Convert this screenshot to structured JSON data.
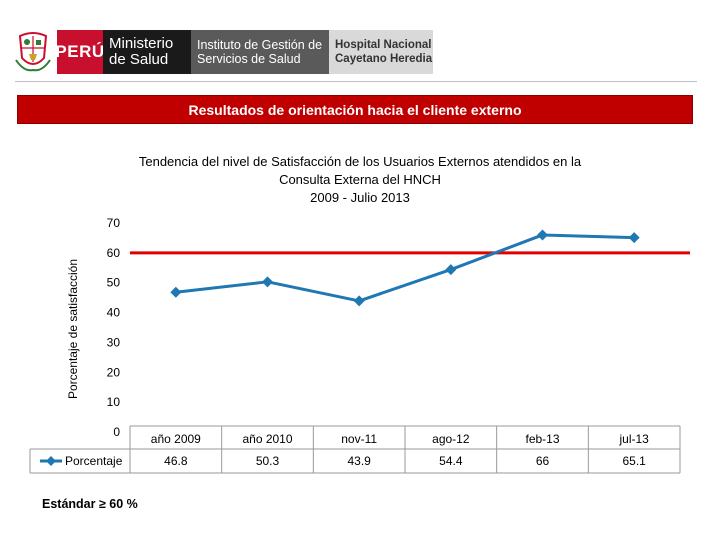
{
  "header": {
    "peru": "PERÚ",
    "ministerio_line1": "Ministerio",
    "ministerio_line2": "de Salud",
    "instituto_line1": "Instituto de Gestión de",
    "instituto_line2": "Servicios de Salud",
    "hospital_line1": "Hospital Nacional",
    "hospital_line2": "Cayetano Heredia"
  },
  "banner": {
    "text": "Resultados de orientación hacia el cliente  externo"
  },
  "chart_data": {
    "type": "line",
    "title_lines": [
      "Tendencia del  nivel de Satisfacción de los Usuarios  Externos atendidos en la",
      "Consulta Externa del HNCH",
      "2009 - Julio 2013"
    ],
    "ylabel": "Porcentaje de satisfacción",
    "ylim": [
      0,
      70
    ],
    "yticks": [
      "0",
      "10",
      "20",
      "30",
      "40",
      "50",
      "60",
      "70"
    ],
    "categories": [
      "año 2009",
      "año 2010",
      "nov-11",
      "ago-12",
      "feb-13",
      "jul-13"
    ],
    "series": [
      {
        "name": "Porcentaje",
        "values": [
          46.8,
          50.3,
          43.9,
          54.4,
          66,
          65.1
        ],
        "labels": [
          "46.8",
          "50.3",
          "43.9",
          "54.4",
          "66",
          "65.1"
        ],
        "color": "#1f77b4"
      }
    ],
    "reference_line": {
      "value": 60,
      "color": "#e00000"
    },
    "data_table": true,
    "legend": "left-of-table"
  },
  "footer": {
    "standard": "Estándar ≥ 60 %"
  }
}
